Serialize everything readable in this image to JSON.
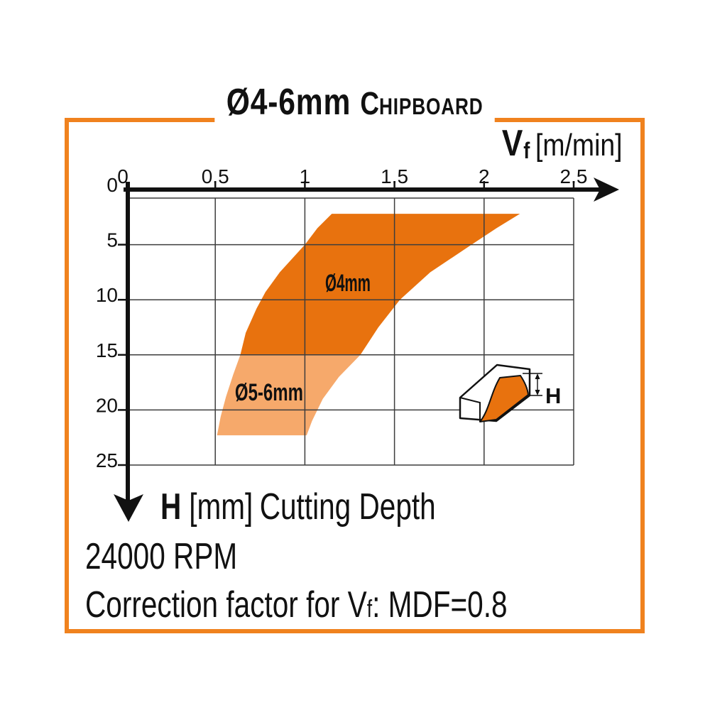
{
  "title": {
    "size_label": "Ø4-6mm",
    "material_initial": "C",
    "material_rest": "HIPBOARD"
  },
  "axis_x_label": {
    "symbol": "V",
    "subscript": "f",
    "unit": "[m/min]"
  },
  "axis_y_label": {
    "symbol": "H",
    "unit": "[mm]",
    "text": "Cutting Depth"
  },
  "footer": {
    "rpm": "24000 RPM",
    "correction_prefix": "Correction factor for V",
    "correction_sub": "f",
    "correction_suffix": ": MDF=0.8"
  },
  "workpiece_icon": {
    "dimension_label": "H"
  },
  "colors": {
    "frame": "#F0821E",
    "band_dark": "#E8720E",
    "band_light": "#F6A96B",
    "grid": "#3d3d3d",
    "axis": "#111111",
    "text": "#111111"
  },
  "chart_data": {
    "type": "area",
    "title": "Ø4-6mm Chipboard",
    "x_axis": {
      "label": "Vf [m/min]",
      "min": 0,
      "max": 2.5,
      "ticks": [
        "0",
        "0.5",
        "1",
        "1.5",
        "2",
        "2.5"
      ],
      "tick_values": [
        0,
        0.5,
        1,
        1.5,
        2,
        2.5
      ]
    },
    "y_axis": {
      "label": "H [mm] Cutting Depth",
      "min": 0,
      "max": 25,
      "ticks": [
        "0",
        "5",
        "10",
        "15",
        "20",
        "25"
      ],
      "tick_values": [
        0,
        5,
        10,
        15,
        20,
        25
      ],
      "direction": "down"
    },
    "grid": true,
    "series": [
      {
        "name": "Ø4mm",
        "color": "#E8720E",
        "depth_range_mm": [
          2.2,
          15
        ]
      },
      {
        "name": "Ø5-6mm",
        "color": "#F6A96B",
        "depth_range_mm": [
          15,
          22.3
        ]
      }
    ],
    "band": {
      "split_depth": 15,
      "left_curve": [
        [
          1.15,
          2.2
        ],
        [
          1.07,
          3.5
        ],
        [
          1.0,
          5
        ],
        [
          0.86,
          7.5
        ],
        [
          0.78,
          9.3
        ],
        [
          0.73,
          10.8
        ],
        [
          0.67,
          13
        ],
        [
          0.64,
          15
        ],
        [
          0.6,
          16.8
        ],
        [
          0.56,
          18.8
        ],
        [
          0.53,
          20.6
        ],
        [
          0.51,
          22.3
        ]
      ],
      "right_curve": [
        [
          2.2,
          2.2
        ],
        [
          2.07,
          3.5
        ],
        [
          1.93,
          5
        ],
        [
          1.7,
          7.5
        ],
        [
          1.53,
          10
        ],
        [
          1.41,
          12.5
        ],
        [
          1.31,
          15
        ],
        [
          1.19,
          17
        ],
        [
          1.1,
          19
        ],
        [
          1.04,
          21
        ],
        [
          1.01,
          22.3
        ]
      ]
    },
    "annotations": [
      {
        "text": "Ø4mm",
        "x": 1.24,
        "y": 8.45
      },
      {
        "text": "Ø5-6mm",
        "x": 0.8,
        "y": 18.35
      }
    ],
    "rpm": "24000 RPM",
    "correction_note": "Correction factor for Vf: MDF=0.8"
  }
}
